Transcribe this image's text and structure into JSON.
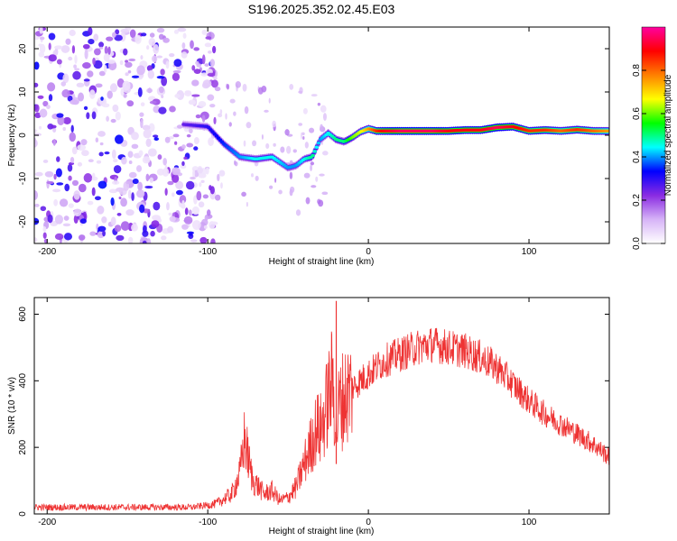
{
  "title": "S196.2025.352.02.45.E03",
  "chart_data": [
    {
      "type": "heatmap",
      "xlabel": "Height of straight line (km)",
      "ylabel": "Frequency (Hz)",
      "xlim": [
        -208,
        150
      ],
      "ylim": [
        -25,
        25
      ],
      "xticks": [
        -200,
        -100,
        0,
        100
      ],
      "yticks": [
        -20,
        -10,
        0,
        10,
        20
      ],
      "colorbar": {
        "label": "Normalized spectral amplitude",
        "range": [
          0,
          1
        ],
        "ticks": [
          0.0,
          0.2,
          0.4,
          0.6,
          0.8
        ],
        "tick_labels": [
          "0.0",
          "0.2",
          "0.4",
          "0.6",
          "0.8"
        ],
        "colors": [
          "#ffffff",
          "#d6b3f7",
          "#8a2be2",
          "#0000ff",
          "#00ffff",
          "#00ff00",
          "#ffff00",
          "#ff8000",
          "#ff0000",
          "#ff00a0"
        ]
      },
      "track": {
        "x": [
          -115,
          -100,
          -90,
          -80,
          -70,
          -60,
          -50,
          -45,
          -40,
          -35,
          -30,
          -25,
          -20,
          -15,
          -10,
          -5,
          0,
          5,
          10,
          20,
          30,
          40,
          50,
          60,
          70,
          80,
          90,
          100,
          110,
          120,
          130,
          140,
          150
        ],
        "y": [
          2.5,
          2.0,
          -2.0,
          -5.0,
          -5.5,
          -5.0,
          -7.5,
          -7.0,
          -5.5,
          -5.0,
          -1.0,
          0.5,
          -1.0,
          -1.5,
          -0.5,
          0.8,
          1.5,
          1.0,
          1.0,
          1.0,
          1.0,
          1.0,
          1.0,
          1.2,
          1.2,
          1.8,
          2.0,
          1.0,
          1.2,
          1.0,
          1.3,
          1.0,
          1.0
        ],
        "amplitude": [
          0.25,
          0.3,
          0.35,
          0.4,
          0.45,
          0.45,
          0.4,
          0.4,
          0.45,
          0.5,
          0.4,
          0.45,
          0.5,
          0.5,
          0.6,
          0.65,
          0.75,
          0.85,
          0.9,
          0.95,
          0.95,
          0.95,
          0.9,
          0.9,
          0.9,
          0.95,
          0.9,
          0.85,
          0.85,
          0.8,
          0.85,
          0.8,
          0.75
        ]
      },
      "noise_region_x": [
        -208,
        -95
      ]
    },
    {
      "type": "line",
      "xlabel": "Height of straight line (km)",
      "ylabel": "SNR (10 * v/v)",
      "xlim": [
        -208,
        150
      ],
      "ylim": [
        0,
        650
      ],
      "xticks": [
        -200,
        -100,
        0,
        100
      ],
      "yticks": [
        0,
        200,
        400,
        600
      ],
      "color": "#ee3333",
      "series": [
        {
          "name": "SNR",
          "x": [
            -208,
            -190,
            -170,
            -150,
            -130,
            -110,
            -95,
            -85,
            -80,
            -77,
            -75,
            -72,
            -68,
            -65,
            -60,
            -55,
            -50,
            -45,
            -40,
            -35,
            -32,
            -30,
            -27,
            -25,
            -22,
            -20,
            -18,
            -15,
            -10,
            -5,
            0,
            5,
            10,
            15,
            20,
            25,
            30,
            40,
            50,
            60,
            70,
            80,
            90,
            100,
            110,
            120,
            130,
            140,
            150
          ],
          "y": [
            20,
            20,
            20,
            20,
            20,
            20,
            30,
            60,
            120,
            230,
            170,
            100,
            80,
            60,
            70,
            40,
            50,
            80,
            150,
            220,
            260,
            250,
            300,
            350,
            400,
            250,
            330,
            350,
            380,
            400,
            420,
            440,
            460,
            470,
            480,
            490,
            500,
            510,
            500,
            490,
            470,
            440,
            390,
            340,
            300,
            270,
            240,
            210,
            170
          ]
        }
      ],
      "spike": {
        "x": -20,
        "y": 640
      }
    }
  ]
}
